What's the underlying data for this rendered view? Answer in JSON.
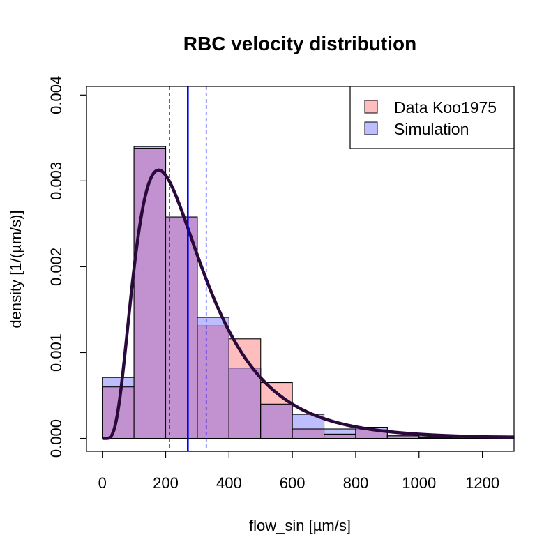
{
  "chart_data": {
    "type": "histogram",
    "title": "RBC velocity distribution",
    "xlabel": "flow_sin [µm/s]",
    "ylabel": "density [1/(µm/s)]",
    "xlim": [
      -50,
      1300
    ],
    "ylim": [
      -0.00015,
      0.0041
    ],
    "x_ticks": [
      0,
      200,
      400,
      600,
      800,
      1000,
      1200
    ],
    "y_ticks": [
      0.0,
      0.001,
      0.002,
      0.003,
      0.004
    ],
    "x_tick_labels": [
      "0",
      "200",
      "400",
      "600",
      "800",
      "1000",
      "1200"
    ],
    "y_tick_labels": [
      "0.000",
      "0.001",
      "0.002",
      "0.003",
      "0.004"
    ],
    "bin_edges": [
      0,
      100,
      200,
      300,
      400,
      500,
      600,
      700,
      800,
      900,
      1000,
      1100,
      1200,
      1300
    ],
    "series": [
      {
        "name": "Data Koo1975",
        "color": "#FFBEBE",
        "values": [
          0.0006,
          0.00338,
          0.00258,
          0.00131,
          0.00116,
          0.00065,
          0.00011,
          5e-05,
          0.0001,
          3e-05,
          1e-05,
          1e-05,
          4e-05
        ]
      },
      {
        "name": "Simulation",
        "color": "#BEBEFF",
        "values": [
          0.00071,
          0.0034,
          0.00258,
          0.00141,
          0.00082,
          0.0004,
          0.00028,
          0.00011,
          0.00013,
          4e-05,
          2e-05,
          1e-05,
          2e-05
        ]
      }
    ],
    "overlap_color": "#C291CF",
    "fitted_curve": {
      "type": "lognormal",
      "meanlog": 5.54,
      "sdlog": 0.6,
      "color": "#2A0A3A"
    },
    "vertical_lines": [
      {
        "x": 270,
        "style": "solid",
        "color": "#0000FF"
      },
      {
        "x": 212,
        "style": "dashed",
        "color": "#0000FF"
      },
      {
        "x": 328,
        "style": "dashed",
        "color": "#0000FF"
      }
    ],
    "legend_position": "top-right",
    "grid": false
  }
}
